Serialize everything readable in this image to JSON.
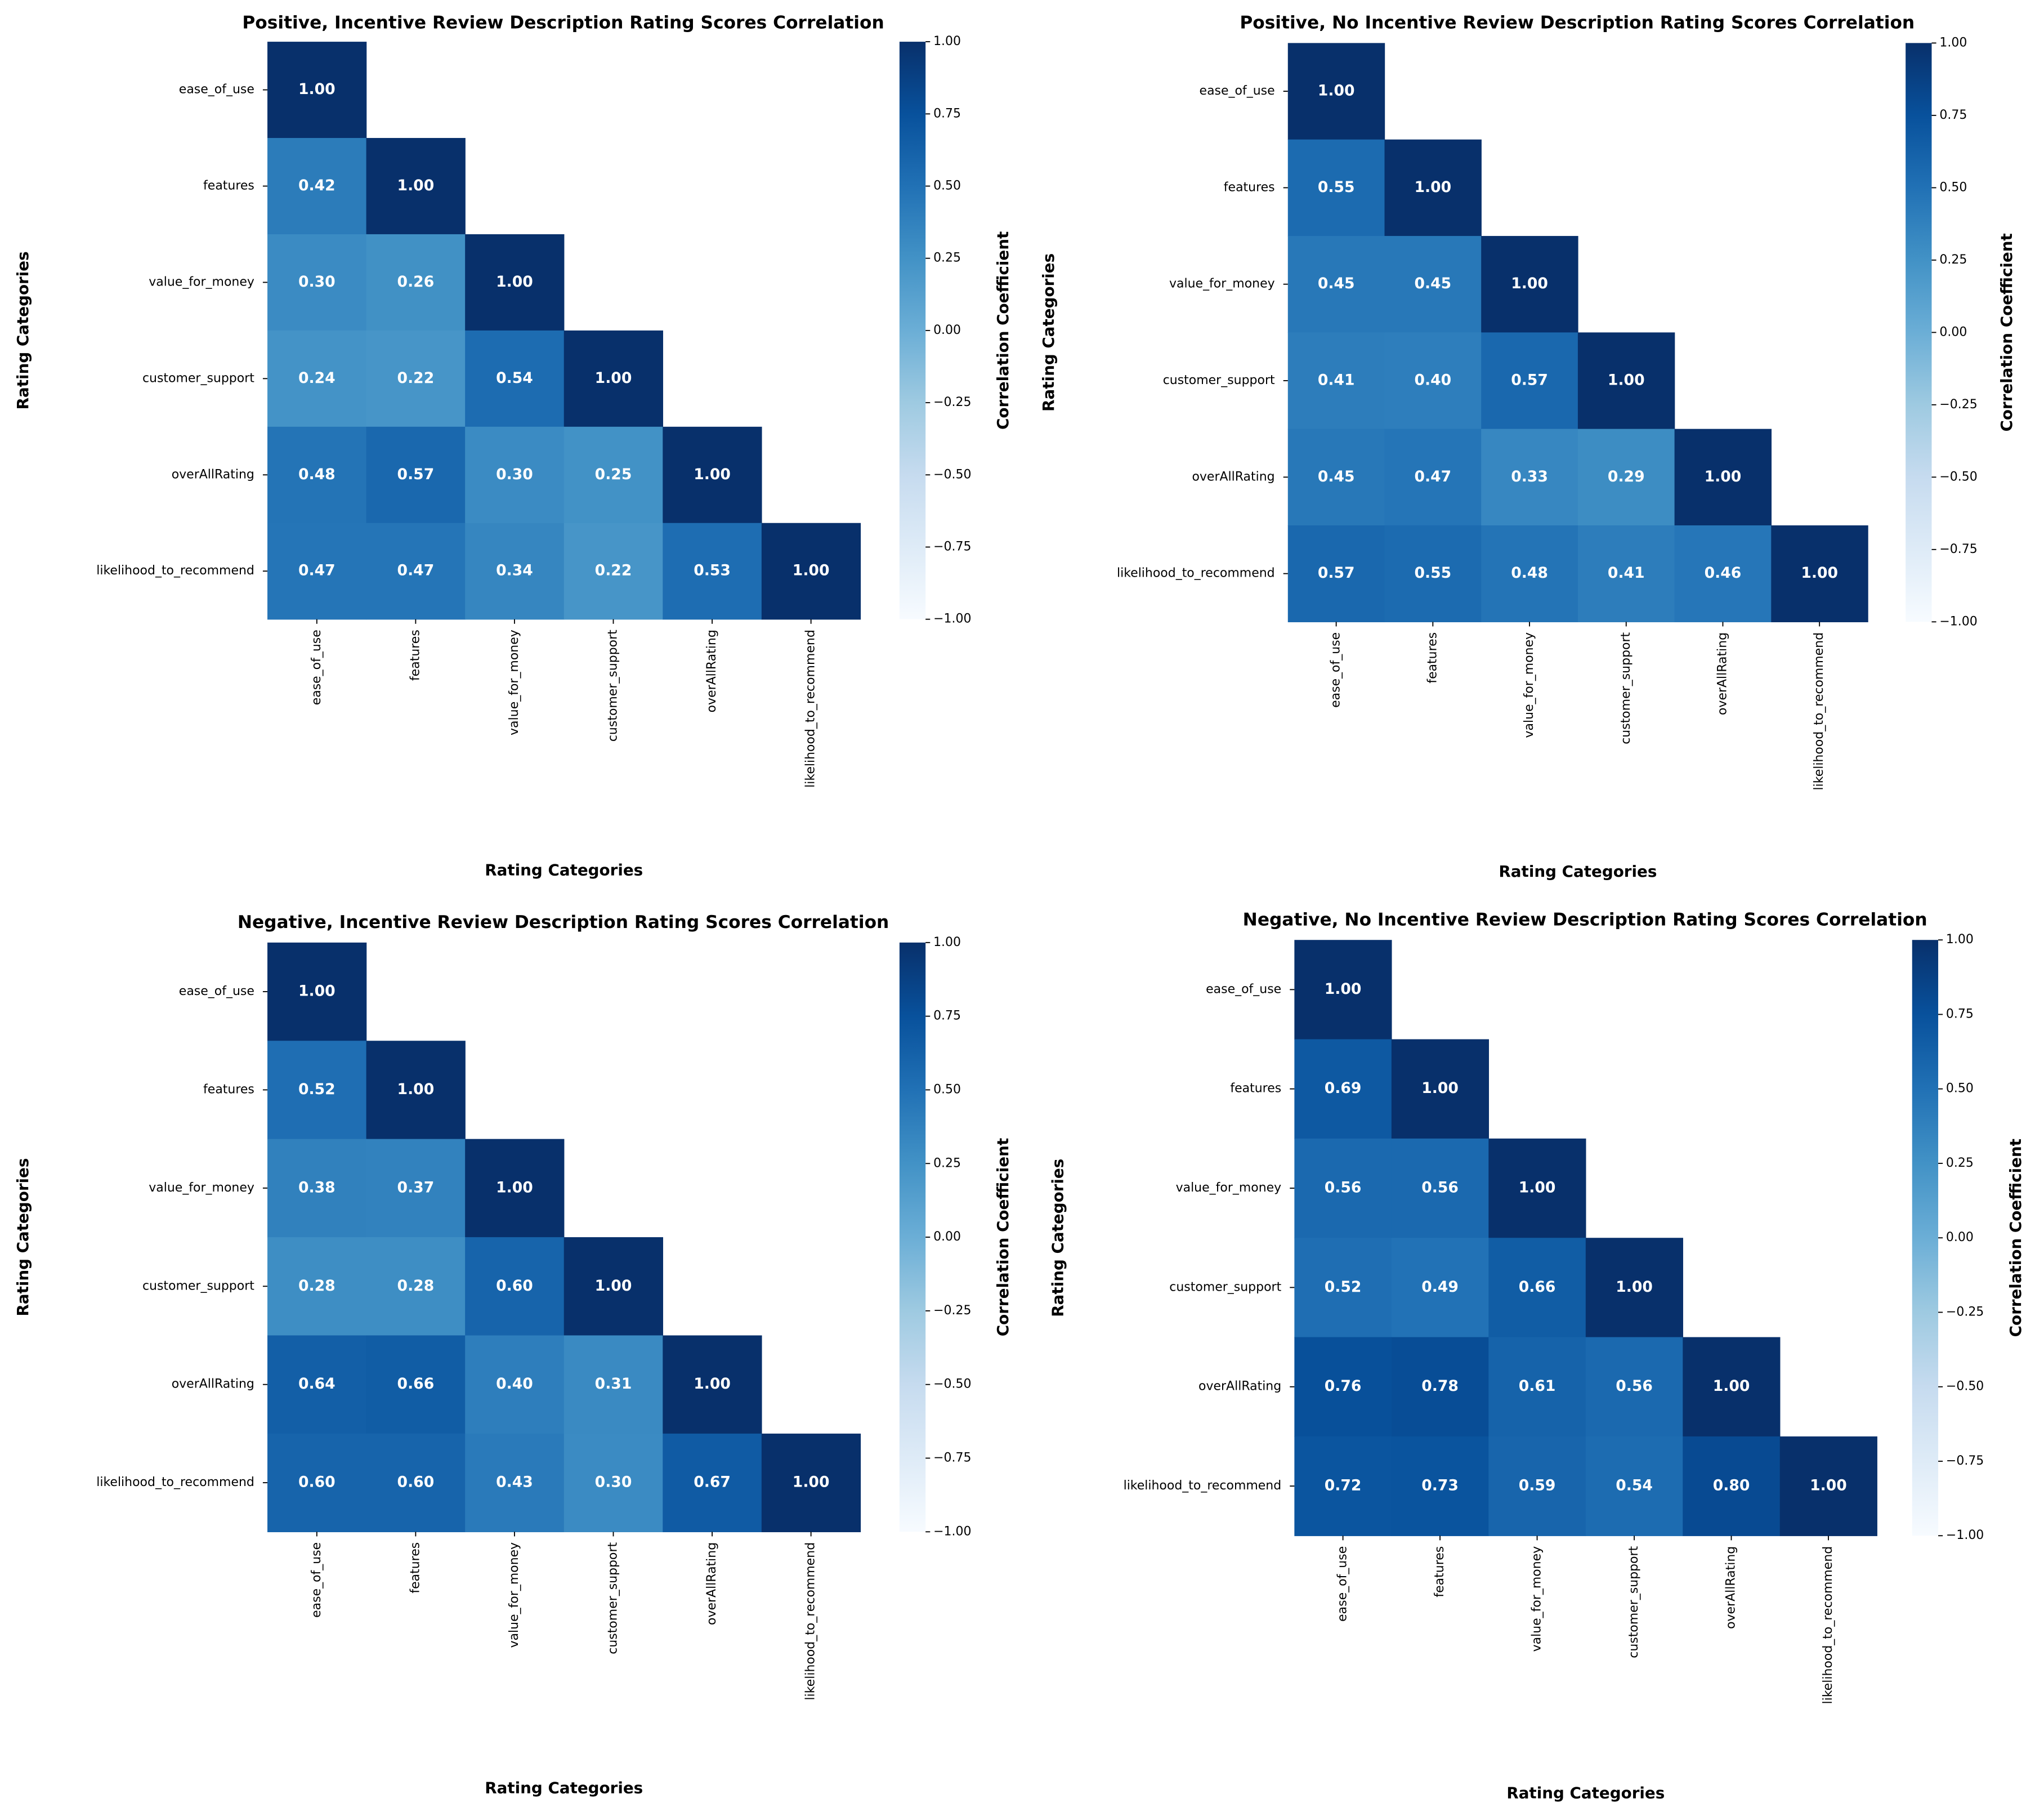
{
  "chart_data": [
    {
      "type": "heatmap",
      "title": "Positive, Incentive Review Description Rating Scores Correlation",
      "xlabel": "Rating Categories",
      "ylabel": "Rating Categories",
      "colorbar_label": "Correlation Coefficient",
      "colormap": "Blues",
      "clim": [
        -1,
        1
      ],
      "cticks": [
        {
          "value": -1,
          "label": "−1.00"
        },
        {
          "value": -0.75,
          "label": "−0.75"
        },
        {
          "value": -0.5,
          "label": "−0.50"
        },
        {
          "value": -0.25,
          "label": "−0.25"
        },
        {
          "value": 0,
          "label": "0.00"
        },
        {
          "value": 0.25,
          "label": "0.25"
        },
        {
          "value": 0.5,
          "label": "0.50"
        },
        {
          "value": 0.75,
          "label": "0.75"
        },
        {
          "value": 1,
          "label": "1.00"
        }
      ],
      "categories": [
        "ease_of_use",
        "features",
        "value_for_money",
        "customer_support",
        "overAllRating",
        "likelihood_to_recommend"
      ],
      "values": [
        [
          1,
          null,
          null,
          null,
          null,
          null
        ],
        [
          0.42,
          1,
          null,
          null,
          null,
          null
        ],
        [
          0.3,
          0.26,
          1,
          null,
          null,
          null
        ],
        [
          0.24,
          0.22,
          0.54,
          1,
          null,
          null
        ],
        [
          0.48,
          0.57,
          0.3,
          0.25,
          1,
          null
        ],
        [
          0.47,
          0.47,
          0.34,
          0.22,
          0.53,
          1
        ]
      ],
      "value_labels": [
        [
          "1.00",
          null,
          null,
          null,
          null,
          null
        ],
        [
          "0.42",
          "1.00",
          null,
          null,
          null,
          null
        ],
        [
          "0.30",
          "0.26",
          "1.00",
          null,
          null,
          null
        ],
        [
          "0.24",
          "0.22",
          "0.54",
          "1.00",
          null,
          null
        ],
        [
          "0.48",
          "0.57",
          "0.30",
          "0.25",
          "1.00",
          null
        ],
        [
          "0.47",
          "0.47",
          "0.34",
          "0.22",
          "0.53",
          "1.00"
        ]
      ]
    },
    {
      "type": "heatmap",
      "title": "Positive, No Incentive Review Description Rating Scores Correlation",
      "xlabel": "Rating Categories",
      "ylabel": "Rating Categories",
      "colorbar_label": "Correlation Coefficient",
      "colormap": "Blues",
      "clim": [
        -1,
        1
      ],
      "cticks": [
        {
          "value": -1,
          "label": "−1.00"
        },
        {
          "value": -0.75,
          "label": "−0.75"
        },
        {
          "value": -0.5,
          "label": "−0.50"
        },
        {
          "value": -0.25,
          "label": "−0.25"
        },
        {
          "value": 0,
          "label": "0.00"
        },
        {
          "value": 0.25,
          "label": "0.25"
        },
        {
          "value": 0.5,
          "label": "0.50"
        },
        {
          "value": 0.75,
          "label": "0.75"
        },
        {
          "value": 1,
          "label": "1.00"
        }
      ],
      "categories": [
        "ease_of_use",
        "features",
        "value_for_money",
        "customer_support",
        "overAllRating",
        "likelihood_to_recommend"
      ],
      "values": [
        [
          1,
          null,
          null,
          null,
          null,
          null
        ],
        [
          0.55,
          1,
          null,
          null,
          null,
          null
        ],
        [
          0.45,
          0.45,
          1,
          null,
          null,
          null
        ],
        [
          0.41,
          0.4,
          0.57,
          1,
          null,
          null
        ],
        [
          0.45,
          0.47,
          0.33,
          0.29,
          1,
          null
        ],
        [
          0.57,
          0.55,
          0.48,
          0.41,
          0.46,
          1
        ]
      ],
      "value_labels": [
        [
          "1.00",
          null,
          null,
          null,
          null,
          null
        ],
        [
          "0.55",
          "1.00",
          null,
          null,
          null,
          null
        ],
        [
          "0.45",
          "0.45",
          "1.00",
          null,
          null,
          null
        ],
        [
          "0.41",
          "0.40",
          "0.57",
          "1.00",
          null,
          null
        ],
        [
          "0.45",
          "0.47",
          "0.33",
          "0.29",
          "1.00",
          null
        ],
        [
          "0.57",
          "0.55",
          "0.48",
          "0.41",
          "0.46",
          "1.00"
        ]
      ]
    },
    {
      "type": "heatmap",
      "title": "Negative, Incentive Review Description Rating Scores Correlation",
      "xlabel": "Rating Categories",
      "ylabel": "Rating Categories",
      "colorbar_label": "Correlation Coefficient",
      "colormap": "Blues",
      "clim": [
        -1,
        1
      ],
      "cticks": [
        {
          "value": -1,
          "label": "−1.00"
        },
        {
          "value": -0.75,
          "label": "−0.75"
        },
        {
          "value": -0.5,
          "label": "−0.50"
        },
        {
          "value": -0.25,
          "label": "−0.25"
        },
        {
          "value": 0,
          "label": "0.00"
        },
        {
          "value": 0.25,
          "label": "0.25"
        },
        {
          "value": 0.5,
          "label": "0.50"
        },
        {
          "value": 0.75,
          "label": "0.75"
        },
        {
          "value": 1,
          "label": "1.00"
        }
      ],
      "categories": [
        "ease_of_use",
        "features",
        "value_for_money",
        "customer_support",
        "overAllRating",
        "likelihood_to_recommend"
      ],
      "values": [
        [
          1,
          null,
          null,
          null,
          null,
          null
        ],
        [
          0.52,
          1,
          null,
          null,
          null,
          null
        ],
        [
          0.38,
          0.37,
          1,
          null,
          null,
          null
        ],
        [
          0.28,
          0.28,
          0.6,
          1,
          null,
          null
        ],
        [
          0.64,
          0.66,
          0.4,
          0.31,
          1,
          null
        ],
        [
          0.6,
          0.6,
          0.43,
          0.3,
          0.67,
          1
        ]
      ],
      "value_labels": [
        [
          "1.00",
          null,
          null,
          null,
          null,
          null
        ],
        [
          "0.52",
          "1.00",
          null,
          null,
          null,
          null
        ],
        [
          "0.38",
          "0.37",
          "1.00",
          null,
          null,
          null
        ],
        [
          "0.28",
          "0.28",
          "0.60",
          "1.00",
          null,
          null
        ],
        [
          "0.64",
          "0.66",
          "0.40",
          "0.31",
          "1.00",
          null
        ],
        [
          "0.60",
          "0.60",
          "0.43",
          "0.30",
          "0.67",
          "1.00"
        ]
      ]
    },
    {
      "type": "heatmap",
      "title": "Negative, No Incentive Review Description Rating Scores Correlation",
      "xlabel": "Rating Categories",
      "ylabel": "Rating Categories",
      "colorbar_label": "Correlation Coefficient",
      "colormap": "Blues",
      "clim": [
        -1,
        1
      ],
      "cticks": [
        {
          "value": -1,
          "label": "−1.00"
        },
        {
          "value": -0.75,
          "label": "−0.75"
        },
        {
          "value": -0.5,
          "label": "−0.50"
        },
        {
          "value": -0.25,
          "label": "−0.25"
        },
        {
          "value": 0,
          "label": "0.00"
        },
        {
          "value": 0.25,
          "label": "0.25"
        },
        {
          "value": 0.5,
          "label": "0.50"
        },
        {
          "value": 0.75,
          "label": "0.75"
        },
        {
          "value": 1,
          "label": "1.00"
        }
      ],
      "categories": [
        "ease_of_use",
        "features",
        "value_for_money",
        "customer_support",
        "overAllRating",
        "likelihood_to_recommend"
      ],
      "values": [
        [
          1,
          null,
          null,
          null,
          null,
          null
        ],
        [
          0.69,
          1,
          null,
          null,
          null,
          null
        ],
        [
          0.56,
          0.56,
          1,
          null,
          null,
          null
        ],
        [
          0.52,
          0.49,
          0.66,
          1,
          null,
          null
        ],
        [
          0.76,
          0.78,
          0.61,
          0.56,
          1,
          null
        ],
        [
          0.72,
          0.73,
          0.59,
          0.54,
          0.8,
          1
        ]
      ],
      "value_labels": [
        [
          "1.00",
          null,
          null,
          null,
          null,
          null
        ],
        [
          "0.69",
          "1.00",
          null,
          null,
          null,
          null
        ],
        [
          "0.56",
          "0.56",
          "1.00",
          null,
          null,
          null
        ],
        [
          "0.52",
          "0.49",
          "0.66",
          "1.00",
          null,
          null
        ],
        [
          "0.76",
          "0.78",
          "0.61",
          "0.56",
          "1.00",
          null
        ],
        [
          "0.72",
          "0.73",
          "0.59",
          "0.54",
          "0.80",
          "1.00"
        ]
      ]
    }
  ]
}
